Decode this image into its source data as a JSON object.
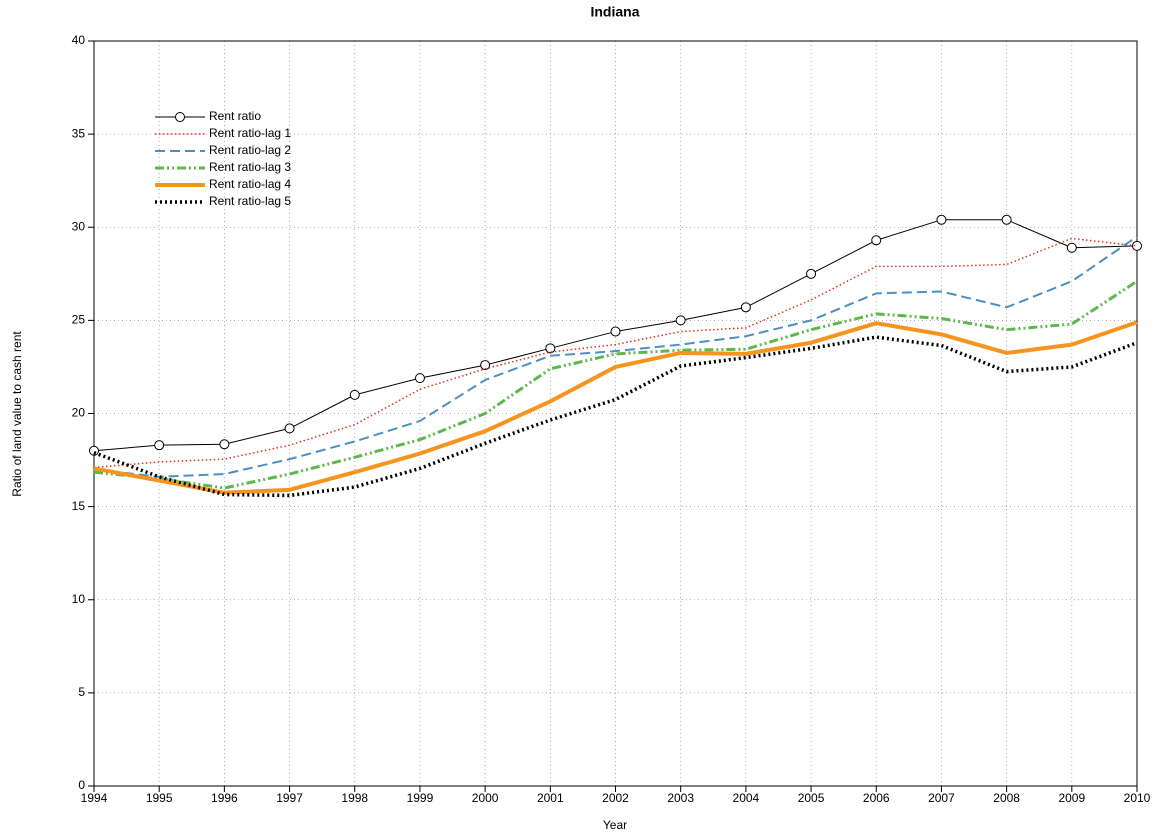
{
  "chart_data": {
    "type": "line",
    "title": "Indiana",
    "x_label": "Year",
    "y_label": "Ratio of land value to cash rent",
    "x": [
      1994,
      1995,
      1996,
      1997,
      1998,
      1999,
      2000,
      2001,
      2002,
      2003,
      2004,
      2005,
      2006,
      2007,
      2008,
      2009,
      2010
    ],
    "xlim": [
      1994,
      2010
    ],
    "xticks": [
      1994,
      1995,
      1996,
      1997,
      1998,
      1999,
      2000,
      2001,
      2002,
      2003,
      2004,
      2005,
      2006,
      2007,
      2008,
      2009,
      2010
    ],
    "ylim": [
      0,
      40
    ],
    "yticks": [
      0,
      5,
      10,
      15,
      20,
      25,
      30,
      35,
      40
    ],
    "grid": true,
    "legend": "upper left",
    "series": [
      {
        "name": "Rent ratio",
        "color": "#000000",
        "dash": "none",
        "width": 1,
        "marker": "circle",
        "values": [
          18.0,
          18.3,
          18.35,
          19.2,
          21.0,
          21.9,
          22.6,
          23.5,
          24.4,
          25.0,
          25.7,
          27.5,
          29.3,
          30.4,
          30.4,
          28.9,
          29.0
        ]
      },
      {
        "name": "Rent ratio-lag 1",
        "color": "#e0301e",
        "dash": "1.5,2.5",
        "width": 1.5,
        "marker": "none",
        "values": [
          17.1,
          17.4,
          17.55,
          18.3,
          19.4,
          21.3,
          22.4,
          23.3,
          23.7,
          24.4,
          24.6,
          26.1,
          27.9,
          27.9,
          28.0,
          29.4,
          29.0
        ]
      },
      {
        "name": "Rent ratio-lag 2",
        "color": "#4a90c2",
        "dash": "10,5",
        "width": 2,
        "marker": "none",
        "values": [
          17.0,
          16.6,
          16.75,
          17.55,
          18.5,
          19.6,
          21.8,
          23.1,
          23.35,
          23.7,
          24.15,
          25.0,
          26.45,
          26.55,
          25.7,
          27.1,
          29.5
        ]
      },
      {
        "name": "Rent ratio-lag 3",
        "color": "#5cb84a",
        "dash": "9,3,2,3,2,3",
        "width": 3,
        "marker": "none",
        "values": [
          16.85,
          16.5,
          16.0,
          16.75,
          17.65,
          18.6,
          20.0,
          22.4,
          23.2,
          23.4,
          23.45,
          24.5,
          25.35,
          25.1,
          24.5,
          24.8,
          27.1
        ]
      },
      {
        "name": "Rent ratio-lag 4",
        "color": "#f7941d",
        "dash": "none",
        "width": 4,
        "marker": "none",
        "values": [
          17.05,
          16.4,
          15.75,
          15.9,
          16.85,
          17.85,
          19.05,
          20.65,
          22.5,
          23.25,
          23.2,
          23.8,
          24.85,
          24.25,
          23.25,
          23.7,
          24.9
        ]
      },
      {
        "name": "Rent ratio-lag 5",
        "color": "#000000",
        "dash": "2,3",
        "width": 3.5,
        "marker": "none",
        "values": [
          17.9,
          16.6,
          15.65,
          15.6,
          16.05,
          17.05,
          18.4,
          19.65,
          20.75,
          22.55,
          23.0,
          23.5,
          24.1,
          23.65,
          22.25,
          22.5,
          23.8
        ]
      }
    ]
  }
}
